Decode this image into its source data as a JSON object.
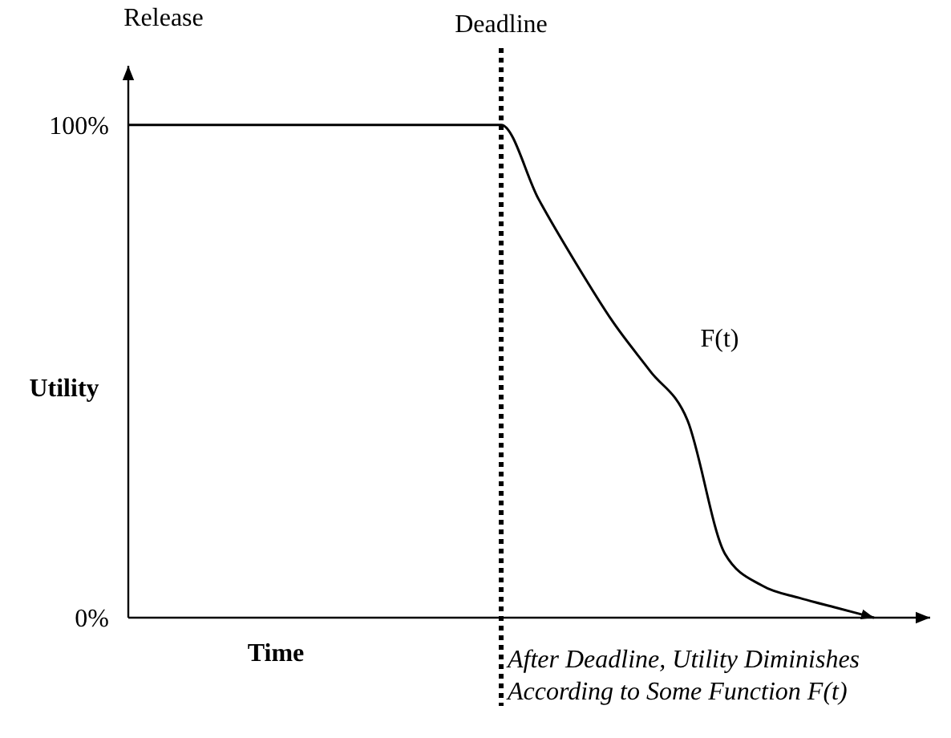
{
  "chart_data": {
    "type": "line",
    "ylabel": "Utility",
    "xlabel": "Time",
    "categories": [
      null,
      null,
      null,
      null,
      null,
      null,
      null,
      null,
      null,
      null,
      null,
      null,
      null,
      null,
      null,
      null,
      null,
      null,
      null,
      null,
      null,
      null
    ],
    "series": [
      {
        "name": "F(t)",
        "color": "#000000",
        "values": [
          100,
          100,
          100,
          100,
          100,
          100,
          100,
          100,
          100,
          100,
          100,
          85,
          72,
          60,
          50,
          40,
          13,
          6.5,
          4,
          2,
          0,
          null
        ]
      }
    ],
    "ylim": [
      0,
      112
    ],
    "yticks": [
      {
        "value": 0,
        "label": "0%"
      },
      {
        "value": 100,
        "label": "100%"
      }
    ],
    "annotations": [
      "Release",
      "Deadline",
      "After Deadline, Utility Diminishes According to Some Function F(t)"
    ],
    "grid": false,
    "marker": "none",
    "line_style": "solid"
  }
}
